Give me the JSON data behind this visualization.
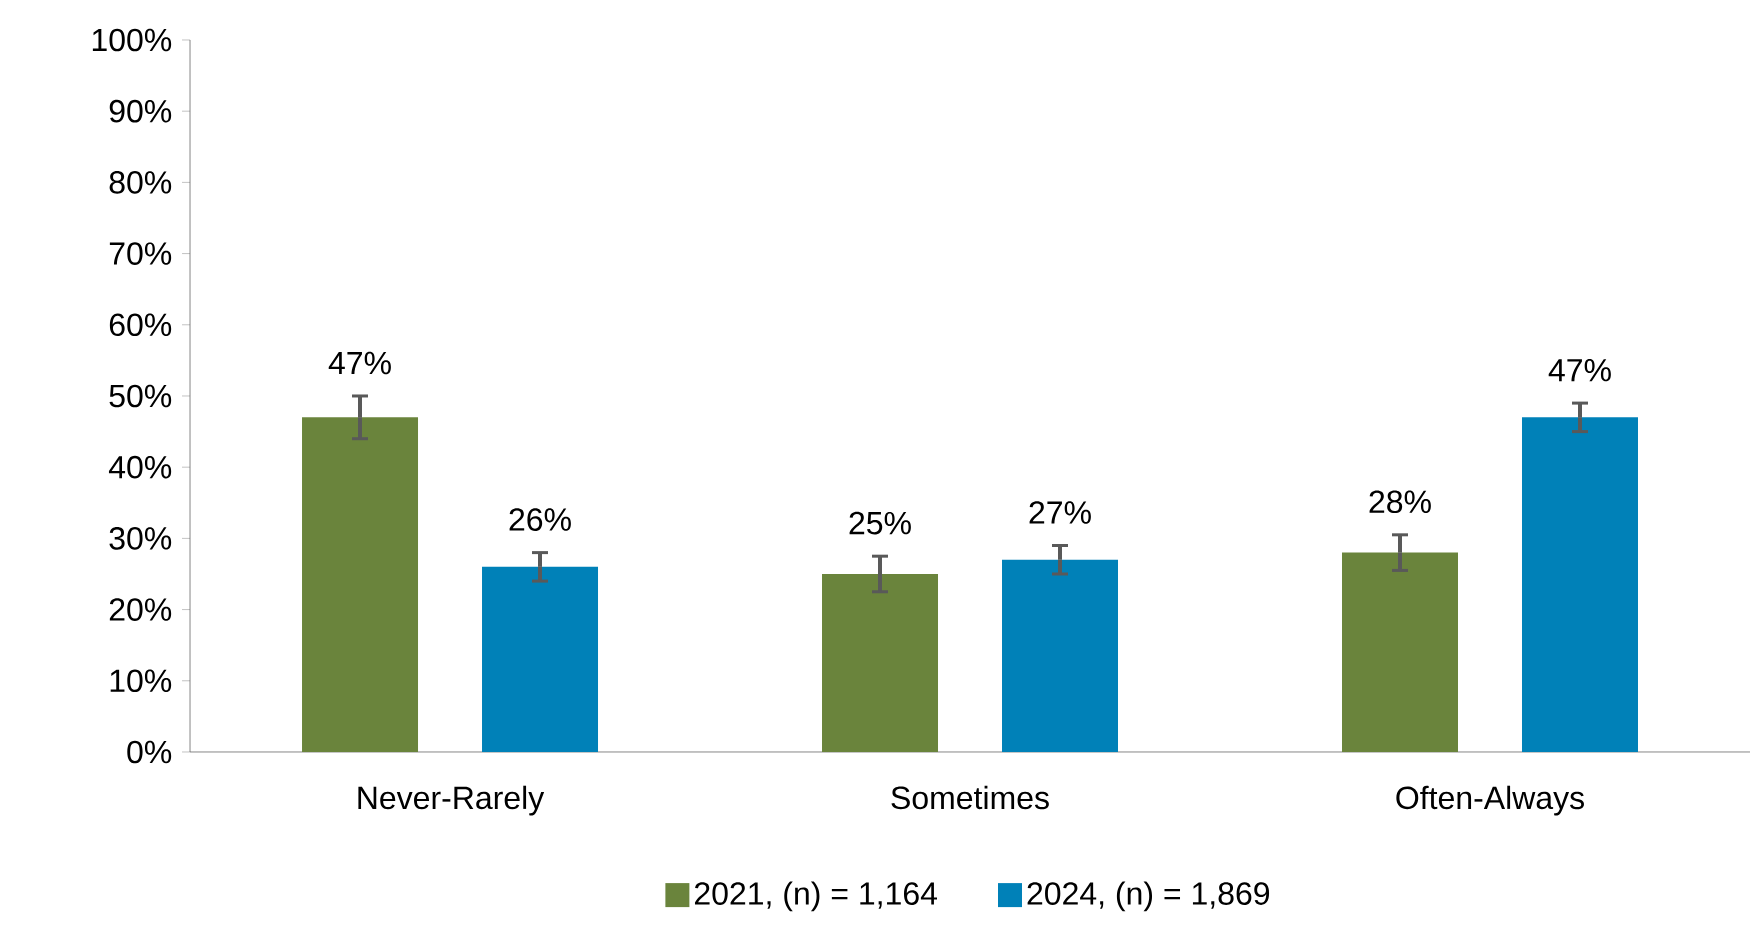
{
  "chart_data": {
    "type": "bar",
    "categories": [
      "Never-Rarely",
      "Sometimes",
      "Often-Always"
    ],
    "series": [
      {
        "name": "2021, (n) = 1,164",
        "color": "#6a843c",
        "values": [
          47,
          25,
          28
        ],
        "value_labels": [
          "47%",
          "25%",
          "28%"
        ],
        "errors": [
          3,
          2.5,
          2.5
        ]
      },
      {
        "name": "2024, (n) = 1,869",
        "color": "#0081b8",
        "values": [
          26,
          27,
          47
        ],
        "value_labels": [
          "26%",
          "27%",
          "47%"
        ],
        "errors": [
          2,
          2,
          2
        ]
      }
    ],
    "ylim": [
      0,
      100
    ],
    "yticks": [
      {
        "value": 0,
        "label": "0%"
      },
      {
        "value": 10,
        "label": "10%"
      },
      {
        "value": 20,
        "label": "20%"
      },
      {
        "value": 30,
        "label": "30%"
      },
      {
        "value": 40,
        "label": "40%"
      },
      {
        "value": 50,
        "label": "50%"
      },
      {
        "value": 60,
        "label": "60%"
      },
      {
        "value": 70,
        "label": "70%"
      },
      {
        "value": 80,
        "label": "80%"
      },
      {
        "value": 90,
        "label": "90%"
      },
      {
        "value": 100,
        "label": "100%"
      }
    ],
    "legend": "bottom",
    "grid": false
  }
}
